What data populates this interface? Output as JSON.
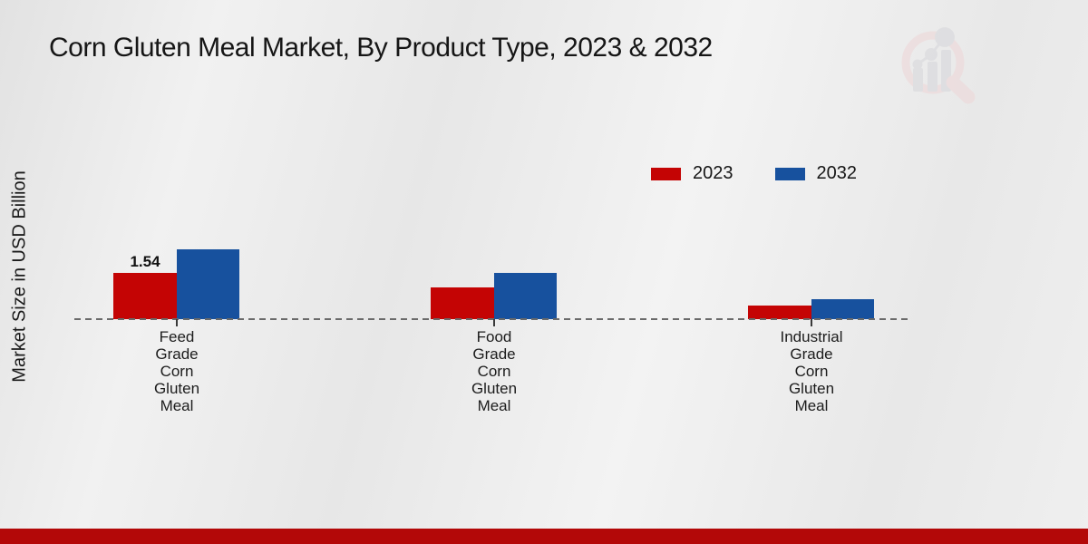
{
  "chart_data": {
    "type": "bar",
    "title": "Corn Gluten Meal Market, By Product Type, 2023 & 2032",
    "ylabel": "Market Size in USD Billion",
    "xlabel": "",
    "categories": [
      "Feed Grade Corn Gluten Meal",
      "Food Grade Corn Gluten Meal",
      "Industrial Grade Corn Gluten Meal"
    ],
    "series": [
      {
        "name": "2023",
        "color": "#c40404",
        "values": [
          1.54,
          1.06,
          0.44
        ],
        "bar_labels": [
          "1.54",
          "",
          ""
        ]
      },
      {
        "name": "2032",
        "color": "#17519e",
        "values": [
          2.3,
          1.54,
          0.67
        ],
        "bar_labels": [
          "",
          "",
          ""
        ]
      }
    ],
    "ylim": [
      0,
      2.6
    ],
    "grid": false,
    "legend_position": "upper-right",
    "baseline_style": "dashed"
  },
  "watermark": {
    "icon": "market-research-future-logo"
  },
  "footer": {
    "bar_color": "#b30808"
  }
}
